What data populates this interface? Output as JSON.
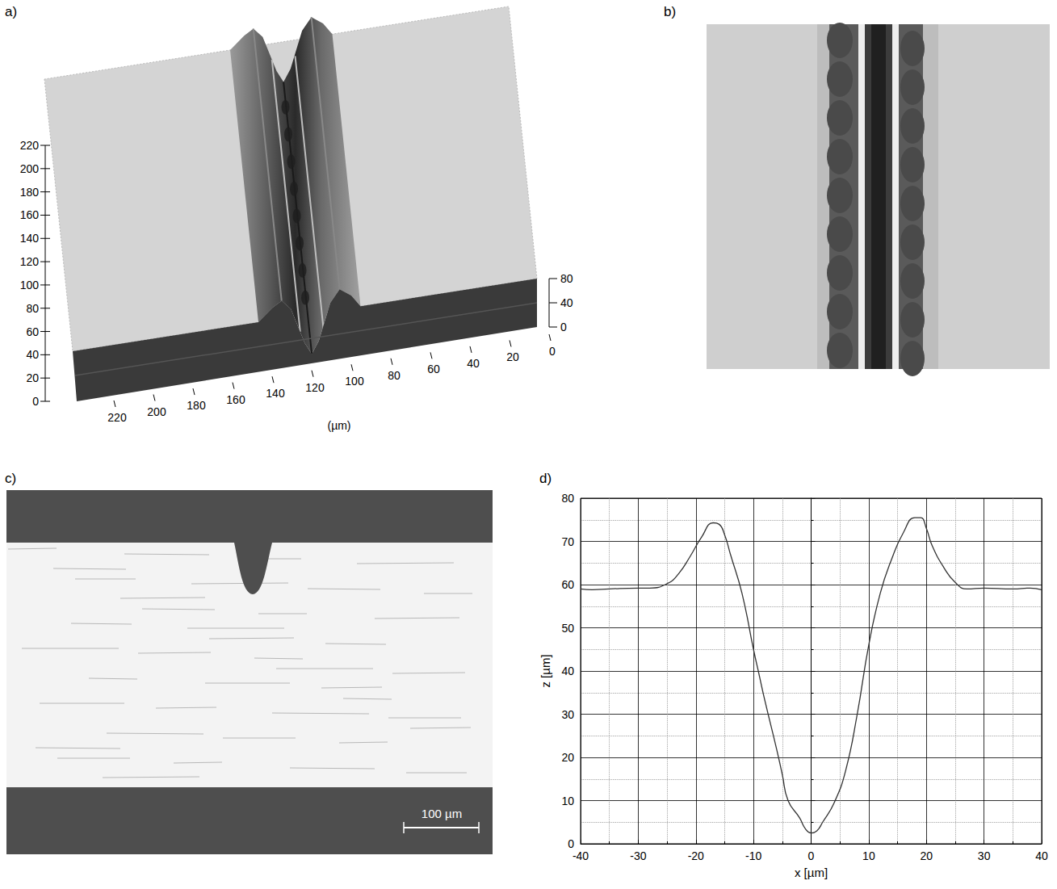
{
  "panels": {
    "a": {
      "label": "a)",
      "depth_ticks": [
        0,
        20,
        40,
        60,
        80,
        100,
        120,
        140,
        160,
        180,
        200,
        220
      ],
      "length_ticks": [
        0,
        20,
        40,
        60,
        80,
        100,
        120,
        140,
        160,
        180,
        200,
        220
      ],
      "height_ticks": [
        0,
        40,
        80
      ],
      "unit": "(µm)"
    },
    "b": {
      "label": "b)"
    },
    "c": {
      "label": "c)",
      "scale_bar": "100 µm"
    },
    "d": {
      "label": "d)"
    }
  },
  "chart_data": {
    "type": "line",
    "color": "#333333",
    "grid": true,
    "x_label": "x [µm]",
    "y_label": "z [µm]",
    "x": [
      -40,
      -38,
      -35,
      -30,
      -28,
      -25,
      -23,
      -21,
      -19,
      -17,
      -16,
      -15,
      -14,
      -12,
      -10,
      -9,
      -8,
      -6,
      -5,
      -4,
      -2,
      -1,
      0,
      1,
      2,
      4,
      6,
      8,
      10,
      12,
      14,
      16,
      18,
      19,
      20,
      21,
      23,
      25,
      27,
      30,
      35,
      38,
      40
    ],
    "values": [
      59,
      58.8,
      59,
      59.2,
      59.2,
      60.2,
      62.5,
      66.5,
      71,
      74.3,
      74,
      71.5,
      67,
      58,
      45,
      39,
      33,
      22,
      16,
      10,
      6,
      3.5,
      2.5,
      3,
      5,
      9.5,
      17,
      30,
      46,
      58,
      66,
      72,
      75.5,
      75.5,
      73,
      69,
      64,
      60.5,
      59,
      59.2,
      59,
      59.2,
      58.8
    ],
    "xlim": [
      -40,
      40
    ],
    "ylim": [
      0,
      80
    ],
    "xticks": [
      -40,
      -30,
      -20,
      -10,
      0,
      10,
      20,
      30,
      40
    ],
    "yticks": [
      0,
      10,
      20,
      30,
      40,
      50,
      60,
      70,
      80
    ]
  }
}
